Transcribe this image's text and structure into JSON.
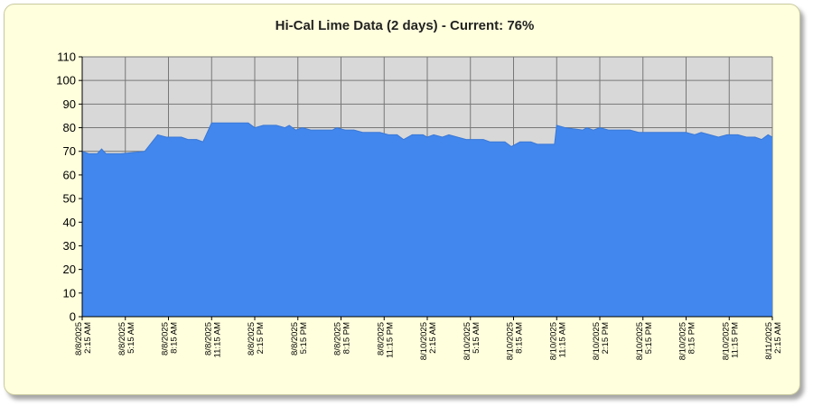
{
  "chart_data": {
    "type": "area",
    "title": "Hi-Cal Lime Data (2 days) - Current: 76%",
    "xlabel": "",
    "ylabel": "",
    "ylim": [
      0,
      110
    ],
    "y_ticks": [
      0,
      10,
      20,
      30,
      40,
      50,
      60,
      70,
      80,
      90,
      100,
      110
    ],
    "grid": true,
    "legend": "none",
    "x_tick_labels": [
      [
        "8/8/2025",
        "2:15 AM"
      ],
      [
        "8/8/2025",
        "5:15 AM"
      ],
      [
        "8/8/2025",
        "8:15 AM"
      ],
      [
        "8/8/2025",
        "11:15 AM"
      ],
      [
        "8/8/2025",
        "2:15 PM"
      ],
      [
        "8/8/2025",
        "5:15 PM"
      ],
      [
        "8/8/2025",
        "8:15 PM"
      ],
      [
        "8/8/2025",
        "11:15 PM"
      ],
      [
        "8/10/2025",
        "2:15 AM"
      ],
      [
        "8/10/2025",
        "5:15 AM"
      ],
      [
        "8/10/2025",
        "8:15 AM"
      ],
      [
        "8/10/2025",
        "11:15 AM"
      ],
      [
        "8/10/2025",
        "2:15 PM"
      ],
      [
        "8/10/2025",
        "5:15 PM"
      ],
      [
        "8/10/2025",
        "8:15 PM"
      ],
      [
        "8/10/2025",
        "11:15 PM"
      ],
      [
        "8/11/2025",
        "2:15 AM"
      ]
    ],
    "x_range_ticks": [
      0,
      16
    ],
    "series": [
      {
        "color": "#4287ee",
        "points": [
          [
            0,
            70
          ],
          [
            0.15,
            69
          ],
          [
            0.35,
            69
          ],
          [
            0.45,
            71
          ],
          [
            0.55,
            69
          ],
          [
            0.9,
            69
          ],
          [
            1.45,
            70
          ],
          [
            1.75,
            77
          ],
          [
            1.95,
            76
          ],
          [
            2.3,
            76
          ],
          [
            2.45,
            75
          ],
          [
            2.65,
            75
          ],
          [
            2.8,
            74
          ],
          [
            3.0,
            82
          ],
          [
            3.5,
            82
          ],
          [
            3.85,
            82
          ],
          [
            4.0,
            80
          ],
          [
            4.2,
            81
          ],
          [
            4.5,
            81
          ],
          [
            4.7,
            80
          ],
          [
            4.8,
            81
          ],
          [
            4.95,
            79
          ],
          [
            5.1,
            80
          ],
          [
            5.3,
            79
          ],
          [
            5.8,
            79
          ],
          [
            5.9,
            80
          ],
          [
            6.1,
            79
          ],
          [
            6.3,
            79
          ],
          [
            6.5,
            78
          ],
          [
            6.9,
            78
          ],
          [
            7.1,
            77
          ],
          [
            7.3,
            77
          ],
          [
            7.45,
            75
          ],
          [
            7.65,
            77
          ],
          [
            7.9,
            77
          ],
          [
            8.0,
            76
          ],
          [
            8.15,
            77
          ],
          [
            8.35,
            76
          ],
          [
            8.5,
            77
          ],
          [
            8.7,
            76
          ],
          [
            8.9,
            75
          ],
          [
            9.3,
            75
          ],
          [
            9.45,
            74
          ],
          [
            9.8,
            74
          ],
          [
            9.95,
            72
          ],
          [
            10.15,
            74
          ],
          [
            10.4,
            74
          ],
          [
            10.55,
            73
          ],
          [
            10.95,
            73
          ],
          [
            11.0,
            81
          ],
          [
            11.2,
            80
          ],
          [
            11.6,
            79
          ],
          [
            11.7,
            80
          ],
          [
            11.85,
            79
          ],
          [
            12.0,
            80
          ],
          [
            12.2,
            79
          ],
          [
            12.7,
            79
          ],
          [
            12.9,
            78
          ],
          [
            13.5,
            78
          ],
          [
            14.0,
            78
          ],
          [
            14.2,
            77
          ],
          [
            14.35,
            78
          ],
          [
            14.55,
            77
          ],
          [
            14.75,
            76
          ],
          [
            14.95,
            77
          ],
          [
            15.2,
            77
          ],
          [
            15.4,
            76
          ],
          [
            15.6,
            76
          ],
          [
            15.75,
            75
          ],
          [
            15.9,
            77
          ],
          [
            16.0,
            76
          ]
        ]
      }
    ]
  }
}
